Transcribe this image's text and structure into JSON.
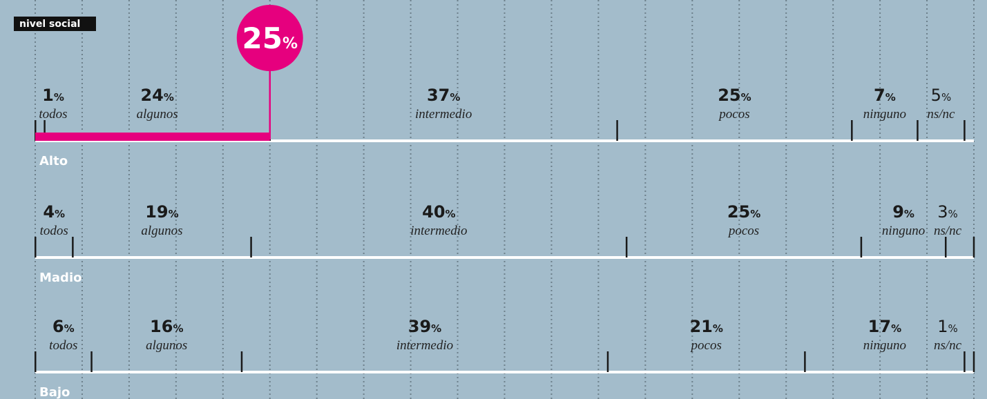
{
  "chart_data": {
    "type": "segmented",
    "label": "nivel social",
    "unit": "%",
    "categories": [
      "todos",
      "algunos",
      "intermedio",
      "pocos",
      "ninguno",
      "ns/nc"
    ],
    "series": [
      {
        "name": "Alto",
        "values": [
          1,
          24,
          37,
          25,
          7,
          5
        ]
      },
      {
        "name": "Madio",
        "values": [
          4,
          19,
          40,
          25,
          9,
          3
        ]
      },
      {
        "name": "Bajo",
        "values": [
          6,
          16,
          39,
          21,
          17,
          1
        ]
      }
    ],
    "xlim": [
      0,
      100
    ],
    "highlight": 25,
    "highlight_color": "#e6007e",
    "bar_color": "#ffffff",
    "tick_color": "#1a1a1a",
    "background": "#a3bccb"
  }
}
